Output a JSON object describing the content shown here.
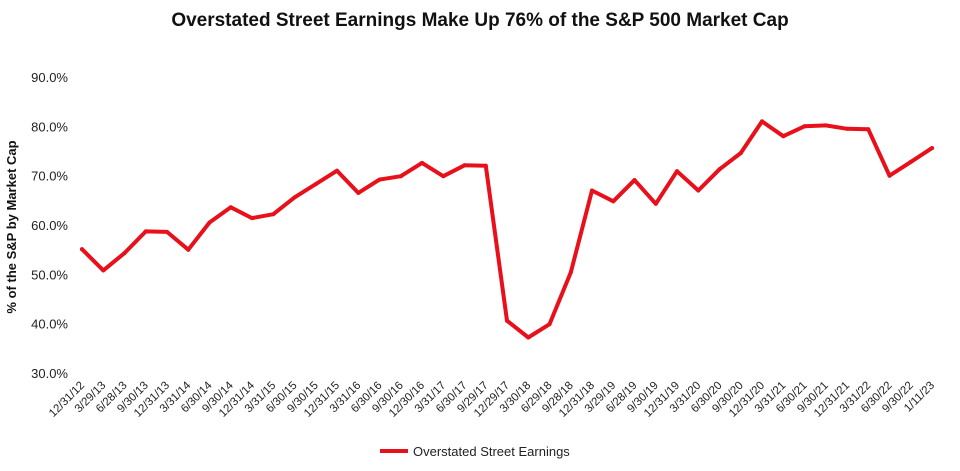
{
  "chart_data": {
    "type": "line",
    "title": "Overstated Street Earnings Make Up 76% of the S&P 500 Market Cap",
    "ylabel": "% of the S&P by Market Cap",
    "xlabel": "",
    "ylim": [
      30,
      90
    ],
    "y_ticks": [
      "90.0%",
      "80.0%",
      "70.0%",
      "60.0%",
      "50.0%",
      "40.0%",
      "30.0%"
    ],
    "y_tick_values": [
      90,
      80,
      70,
      60,
      50,
      40,
      30
    ],
    "grid": false,
    "legend_position": "bottom",
    "categories": [
      "12/31/12",
      "3/29/13",
      "6/28/13",
      "9/30/13",
      "12/31/13",
      "3/31/14",
      "6/30/14",
      "9/30/14",
      "12/31/14",
      "3/31/15",
      "6/30/15",
      "9/30/15",
      "12/31/15",
      "3/31/16",
      "6/30/16",
      "9/30/16",
      "12/30/16",
      "3/31/17",
      "6/30/17",
      "9/29/17",
      "12/29/17",
      "3/30/18",
      "6/29/18",
      "9/28/18",
      "12/31/18",
      "3/29/19",
      "6/28/19",
      "9/30/19",
      "12/31/19",
      "3/31/20",
      "6/30/20",
      "9/30/20",
      "12/31/20",
      "3/31/21",
      "6/30/21",
      "9/30/21",
      "12/31/21",
      "3/31/22",
      "6/30/22",
      "9/30/22",
      "1/11/23"
    ],
    "series": [
      {
        "name": "Overstated Street Earnings",
        "color": "#e8101a",
        "values": [
          55.3,
          51.0,
          54.5,
          58.9,
          58.8,
          55.2,
          60.7,
          63.8,
          61.6,
          62.4,
          65.8,
          68.5,
          71.2,
          66.7,
          69.4,
          70.1,
          72.8,
          70.1,
          72.3,
          72.2,
          40.8,
          37.4,
          40.1,
          50.6,
          67.2,
          65.0,
          69.3,
          64.5,
          71.1,
          67.2,
          71.5,
          74.8,
          81.2,
          78.2,
          80.2,
          80.4,
          79.7,
          79.6,
          70.2,
          73.0,
          75.8
        ]
      }
    ]
  }
}
